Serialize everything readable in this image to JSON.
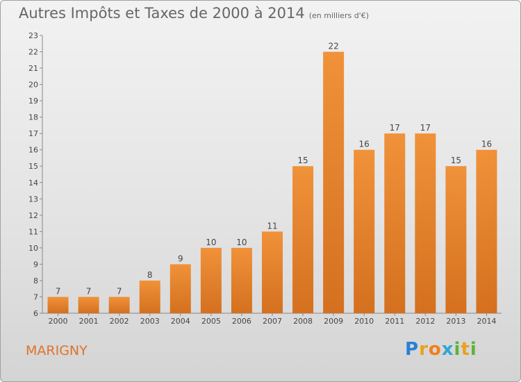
{
  "chart_data": {
    "type": "bar",
    "title": "Autres Impôts et Taxes de 2000 à 2014",
    "subtitle": "(en milliers d'€)",
    "categories": [
      "2000",
      "2001",
      "2002",
      "2003",
      "2004",
      "2005",
      "2006",
      "2007",
      "2008",
      "2009",
      "2010",
      "2011",
      "2012",
      "2013",
      "2014"
    ],
    "values": [
      7,
      7,
      7,
      8,
      9,
      10,
      10,
      11,
      15,
      22,
      16,
      17,
      17,
      15,
      16
    ],
    "xlabel": "",
    "ylabel": "",
    "ylim": [
      6,
      23
    ],
    "yticks": [
      6,
      7,
      8,
      9,
      10,
      11,
      12,
      13,
      14,
      15,
      16,
      17,
      18,
      19,
      20,
      21,
      22,
      23
    ],
    "grid": false,
    "bar_color": "#f0923a",
    "bar_color_dark": "#d4701f"
  },
  "commune": "MARIGNY",
  "logo": {
    "letters": [
      "P",
      "r",
      "o",
      "x",
      "i",
      "t",
      "i"
    ],
    "colors": [
      "#2a7fd4",
      "#e8a21c",
      "#f07f1c",
      "#2ea6d9",
      "#5ab43c",
      "#e8a21c",
      "#5ab43c"
    ]
  }
}
